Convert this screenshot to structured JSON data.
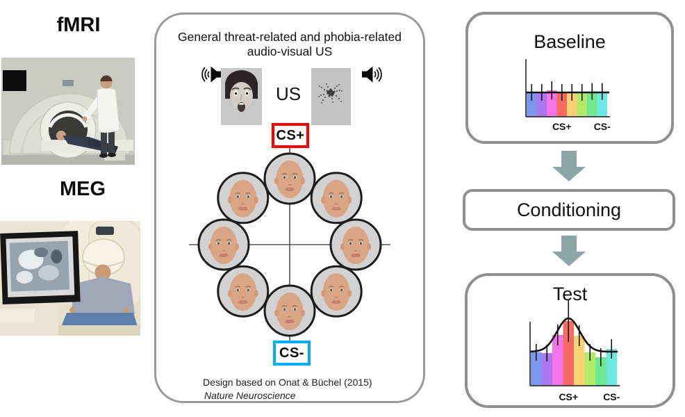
{
  "left_column": {
    "fmri_label": "fMRI",
    "meg_label": "MEG"
  },
  "center_panel": {
    "title_line1": "General threat-related and phobia-related",
    "title_line2": "audio-visual US",
    "us_label": "US",
    "cs_plus_label": "CS+",
    "cs_minus_label": "CS-",
    "num_faces": 8,
    "credit_line1": "Design based on Onat & Büchel (2015)",
    "credit_line2": "Nature Neuroscience",
    "colors": {
      "cs_plus_border": "#ff0000",
      "cs_minus_border": "#00b0f0"
    }
  },
  "flow_panel": {
    "baseline_title": "Baseline",
    "conditioning_title": "Conditioning",
    "test_title": "Test",
    "arrow_color": "#8ca6a8"
  },
  "chart_data": [
    {
      "id": "baseline-chart",
      "type": "bar",
      "title": "Baseline",
      "categories": [
        "",
        "",
        "",
        "CS+",
        "",
        "",
        "",
        "CS-"
      ],
      "values": [
        35,
        35,
        38,
        35,
        35,
        35,
        36.5,
        36.5
      ],
      "errors": [
        12,
        12,
        13,
        12,
        12,
        12,
        12,
        12
      ],
      "reference_line": 35,
      "colors": [
        "#7e97ee",
        "#aa78ee",
        "#f472e8",
        "#f56b62",
        "#f8d272",
        "#b4ea6a",
        "#6fe98e",
        "#6ee6e2"
      ],
      "x_labels": [
        {
          "text": "CS+",
          "bar_index": 3
        },
        {
          "text": "CS-",
          "bar_index": 7
        }
      ],
      "ylim": [
        0,
        92
      ],
      "legend": "none",
      "grid": false
    },
    {
      "id": "test-chart",
      "type": "bar",
      "title": "Test",
      "categories": [
        "",
        "",
        "",
        "CS+",
        "",
        "",
        "",
        "CS-"
      ],
      "values": [
        48,
        47,
        73,
        93,
        72,
        48,
        41,
        53
      ],
      "errors": [
        12,
        12,
        15,
        30,
        15,
        12,
        13,
        14
      ],
      "curve": {
        "shape": "gaussian",
        "baseline": 49,
        "amplitude": 48,
        "center_bar": 3.5,
        "sigma_bars": 1.05
      },
      "colors": [
        "#7e97ee",
        "#aa78ee",
        "#f472e8",
        "#f56b62",
        "#f8d272",
        "#b4ea6a",
        "#6fe98e",
        "#6ee6e2"
      ],
      "x_labels": [
        {
          "text": "CS+",
          "bar_index": 3
        },
        {
          "text": "CS-",
          "bar_index": 7
        }
      ],
      "ylim": [
        0,
        92
      ],
      "legend": "none",
      "grid": false
    }
  ]
}
